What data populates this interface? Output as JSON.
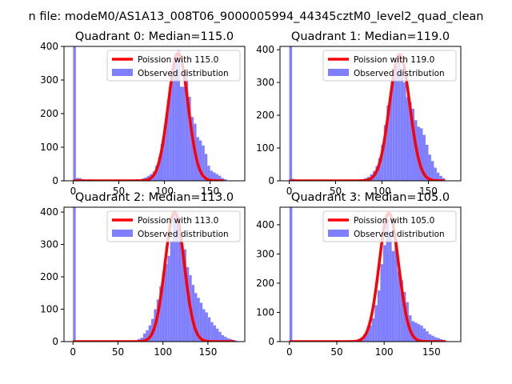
{
  "figure": {
    "suptitle": "n file: modeM0/AS1A13_008T06_9000005994_44345cztM0_level2_quad_clean"
  },
  "chart_data": [
    {
      "type": "bar",
      "title": "Quadrant 0: Median=115.0",
      "xlim": [
        -10,
        188
      ],
      "ylim": [
        0,
        400
      ],
      "xticks": [
        0,
        50,
        100,
        150
      ],
      "yticks": [
        0,
        100,
        200,
        300,
        400
      ],
      "legend": {
        "placement": "top-right",
        "entries": [
          "Poission with 115.0",
          "Observed distribution"
        ]
      },
      "bin_width": 3,
      "histogram": {
        "name": "Observed distribution",
        "bins_start": [
          0,
          3,
          6,
          9,
          12,
          15,
          18,
          21,
          24,
          27,
          30,
          33,
          39,
          45,
          60,
          69,
          75,
          78,
          81,
          84,
          87,
          90,
          93,
          96,
          99,
          102,
          105,
          108,
          111,
          114,
          117,
          120,
          123,
          126,
          129,
          132,
          135,
          138,
          141,
          144,
          147,
          150,
          153,
          156,
          159,
          162,
          165
        ],
        "values": [
          400,
          8,
          8,
          5,
          4,
          4,
          4,
          3,
          3,
          3,
          3,
          3,
          3,
          2,
          2,
          5,
          7,
          10,
          15,
          20,
          28,
          45,
          70,
          110,
          160,
          210,
          280,
          320,
          380,
          390,
          280,
          280,
          330,
          250,
          190,
          170,
          130,
          120,
          105,
          80,
          45,
          30,
          25,
          20,
          15,
          8,
          5
        ]
      },
      "poisson": {
        "name": "Poission with 115.0",
        "mean": 115.0,
        "peak": 380,
        "x_range": [
          0,
          165
        ]
      }
    },
    {
      "type": "bar",
      "title": "Quadrant 1: Median=119.0",
      "xlim": [
        -10,
        185
      ],
      "ylim": [
        0,
        410
      ],
      "xticks": [
        0,
        50,
        100,
        150
      ],
      "yticks": [
        0,
        100,
        200,
        300,
        400
      ],
      "legend": {
        "placement": "top-right",
        "entries": [
          "Poission with 119.0",
          "Observed distribution"
        ]
      },
      "bin_width": 3,
      "histogram": {
        "name": "Observed distribution",
        "bins_start": [
          0,
          3,
          6,
          9,
          15,
          21,
          30,
          63,
          72,
          78,
          81,
          84,
          87,
          90,
          93,
          96,
          99,
          102,
          105,
          108,
          111,
          114,
          117,
          120,
          123,
          126,
          129,
          132,
          135,
          138,
          141,
          144,
          147,
          150,
          153,
          156,
          159,
          162,
          165
        ],
        "values": [
          410,
          6,
          4,
          3,
          2,
          2,
          2,
          2,
          3,
          5,
          8,
          12,
          20,
          30,
          45,
          70,
          110,
          170,
          230,
          260,
          330,
          350,
          380,
          330,
          300,
          255,
          240,
          220,
          185,
          165,
          160,
          140,
          110,
          80,
          60,
          40,
          25,
          15,
          8
        ]
      },
      "poisson": {
        "name": "Poission with 119.0",
        "mean": 119.0,
        "peak": 385,
        "x_range": [
          0,
          168
        ]
      }
    },
    {
      "type": "bar",
      "title": "Quadrant 2: Median=113.0",
      "xlim": [
        -10,
        191
      ],
      "ylim": [
        0,
        415
      ],
      "xticks": [
        0,
        50,
        100,
        150
      ],
      "yticks": [
        0,
        100,
        200,
        300,
        400
      ],
      "legend": {
        "placement": "top-right",
        "entries": [
          "Poission with 113.0",
          "Observed distribution"
        ]
      },
      "bin_width": 3,
      "histogram": {
        "name": "Observed distribution",
        "bins_start": [
          0,
          3,
          63,
          69,
          72,
          75,
          78,
          81,
          84,
          87,
          90,
          93,
          96,
          99,
          102,
          105,
          108,
          111,
          114,
          117,
          120,
          123,
          126,
          129,
          132,
          135,
          138,
          141,
          144,
          147,
          150,
          153,
          156,
          159,
          162,
          165,
          168,
          171,
          174,
          177,
          180
        ],
        "values": [
          415,
          3,
          2,
          3,
          8,
          12,
          25,
          35,
          50,
          70,
          100,
          130,
          170,
          195,
          240,
          265,
          310,
          395,
          375,
          375,
          300,
          285,
          230,
          205,
          175,
          150,
          135,
          120,
          100,
          90,
          75,
          60,
          50,
          40,
          30,
          20,
          15,
          10,
          8,
          5,
          3
        ]
      },
      "poisson": {
        "name": "Poission with 113.0",
        "mean": 113.0,
        "peak": 400,
        "x_range": [
          0,
          180
        ]
      }
    },
    {
      "type": "bar",
      "title": "Quadrant 3: Median=105.0",
      "xlim": [
        -10,
        181
      ],
      "ylim": [
        0,
        460
      ],
      "xticks": [
        0,
        50,
        100,
        150
      ],
      "yticks": [
        0,
        100,
        200,
        300,
        400
      ],
      "legend": {
        "placement": "top-right",
        "entries": [
          "Poission with 105.0",
          "Observed distribution"
        ]
      },
      "bin_width": 3,
      "histogram": {
        "name": "Observed distribution",
        "bins_start": [
          0,
          3,
          9,
          54,
          63,
          69,
          72,
          75,
          78,
          81,
          84,
          87,
          90,
          93,
          96,
          99,
          102,
          105,
          108,
          111,
          114,
          117,
          120,
          123,
          126,
          129,
          132,
          135,
          138,
          141,
          144,
          147,
          150,
          153,
          156,
          159,
          162
        ],
        "values": [
          460,
          4,
          2,
          2,
          3,
          5,
          10,
          15,
          25,
          35,
          55,
          80,
          125,
          175,
          265,
          330,
          420,
          375,
          310,
          350,
          240,
          210,
          170,
          135,
          90,
          70,
          65,
          60,
          55,
          45,
          35,
          25,
          20,
          15,
          12,
          8,
          5
        ]
      },
      "poisson": {
        "name": "Poission with 105.0",
        "mean": 105.0,
        "peak": 440,
        "x_range": [
          0,
          165
        ]
      }
    }
  ]
}
